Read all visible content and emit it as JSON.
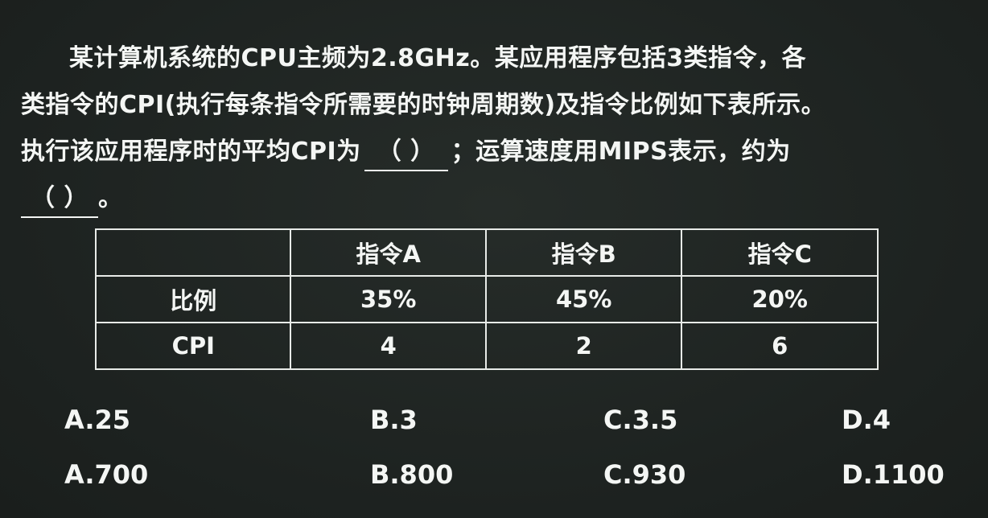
{
  "question": {
    "line1": "某计算机系统的CPU主频为2.8GHz。某应用程序包括3类指令，各",
    "line2": "类指令的CPI(执行每条指令所需要的时钟周期数)及指令比例如下表所示。",
    "line3_before": "执行该应用程序时的平均CPI为",
    "blank1": "（ ）",
    "line3_after": "；运算速度用MIPS表示，约为",
    "blank2": "（ ）",
    "line4_after": "。"
  },
  "table": {
    "headers": [
      "",
      "指令A",
      "指令B",
      "指令C"
    ],
    "rows": [
      [
        "比例",
        "35%",
        "45%",
        "20%"
      ],
      [
        "CPI",
        "4",
        "2",
        "6"
      ]
    ]
  },
  "options": {
    "set1": [
      "A.25",
      "B.3",
      "C.3.5",
      "D.4"
    ],
    "set2": [
      "A.700",
      "B.800",
      "C.930",
      "D.1100"
    ]
  },
  "colors": {
    "background": "#1f2422",
    "text": "#f4f6f4"
  }
}
